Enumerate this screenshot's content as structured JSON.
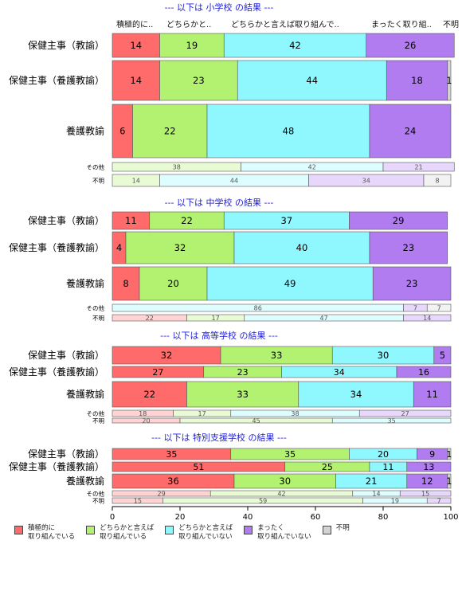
{
  "chart_data": {
    "type": "bar",
    "orientation": "horizontal-stacked",
    "xlim": [
      0,
      100
    ],
    "x_ticks": [
      0,
      20,
      40,
      60,
      80,
      100
    ],
    "column_labels": [
      "積極的に..",
      "どちらかと..",
      "どちらかと言えば取り組んで..",
      "まったく取り組..",
      "不明"
    ],
    "legend": [
      {
        "label": "積極的に\n取り組んでいる",
        "color": "#ff6b6b"
      },
      {
        "label": "どちらかと言えば\n取り組んでいる",
        "color": "#b2f270"
      },
      {
        "label": "どちらかと言えば\n取り組んでいない",
        "color": "#8ff8ff"
      },
      {
        "label": "まったく\n取り組んでいない",
        "color": "#b07cf0"
      },
      {
        "label": "不明",
        "color": "#d3d3d3"
      }
    ],
    "groups": [
      {
        "title": "--- 以下は 小学校 の結果 ---",
        "rows": [
          {
            "label": "保健主事（教諭）",
            "values": [
              14,
              19,
              42,
              26,
              0
            ],
            "size": "large"
          },
          {
            "label": "保健主事（養護教諭）",
            "values": [
              14,
              23,
              44,
              18,
              1
            ],
            "size": "large"
          },
          {
            "label": "養護教諭",
            "values": [
              6,
              22,
              48,
              24,
              0
            ],
            "size": "large"
          },
          {
            "label": "その他",
            "values": [
              0,
              38,
              42,
              21,
              0
            ],
            "size": "small"
          },
          {
            "label": "不明",
            "values": [
              0,
              14,
              44,
              34,
              8
            ],
            "size": "small"
          }
        ]
      },
      {
        "title": "--- 以下は 中学校 の結果 ---",
        "rows": [
          {
            "label": "保健主事（教諭）",
            "values": [
              11,
              22,
              37,
              29,
              0
            ],
            "size": "large"
          },
          {
            "label": "保健主事（養護教諭）",
            "values": [
              4,
              32,
              40,
              23,
              0
            ],
            "size": "large"
          },
          {
            "label": "養護教諭",
            "values": [
              8,
              20,
              49,
              23,
              0
            ],
            "size": "large"
          },
          {
            "label": "その他",
            "values": [
              0,
              0,
              86,
              7,
              7
            ],
            "size": "small"
          },
          {
            "label": "不明",
            "values": [
              22,
              17,
              47,
              14,
              0
            ],
            "size": "small"
          }
        ]
      },
      {
        "title": "--- 以下は 高等学校 の結果 ---",
        "rows": [
          {
            "label": "保健主事（教諭）",
            "values": [
              32,
              33,
              30,
              5,
              0
            ],
            "size": "large"
          },
          {
            "label": "保健主事（養護教諭）",
            "values": [
              27,
              23,
              34,
              16,
              0
            ],
            "size": "medium"
          },
          {
            "label": "養護教諭",
            "values": [
              22,
              33,
              34,
              11,
              0
            ],
            "size": "large"
          },
          {
            "label": "その他",
            "values": [
              18,
              17,
              38,
              27,
              0
            ],
            "size": "tiny"
          },
          {
            "label": "不明",
            "values": [
              20,
              45,
              35,
              0,
              0
            ],
            "size": "tiny"
          }
        ]
      },
      {
        "title": "--- 以下は 特別支援学校 の結果 ---",
        "rows": [
          {
            "label": "保健主事（教諭）",
            "values": [
              35,
              35,
              20,
              9,
              1
            ],
            "size": "medium"
          },
          {
            "label": "保健主事（養護教諭）",
            "values": [
              51,
              25,
              11,
              13,
              0
            ],
            "size": "medium"
          },
          {
            "label": "養護教諭",
            "values": [
              36,
              30,
              21,
              12,
              1
            ],
            "size": "large"
          },
          {
            "label": "その他",
            "values": [
              29,
              42,
              14,
              15,
              0
            ],
            "size": "tiny"
          },
          {
            "label": "不明",
            "values": [
              15,
              59,
              19,
              7,
              0
            ],
            "size": "tiny"
          }
        ]
      }
    ]
  }
}
